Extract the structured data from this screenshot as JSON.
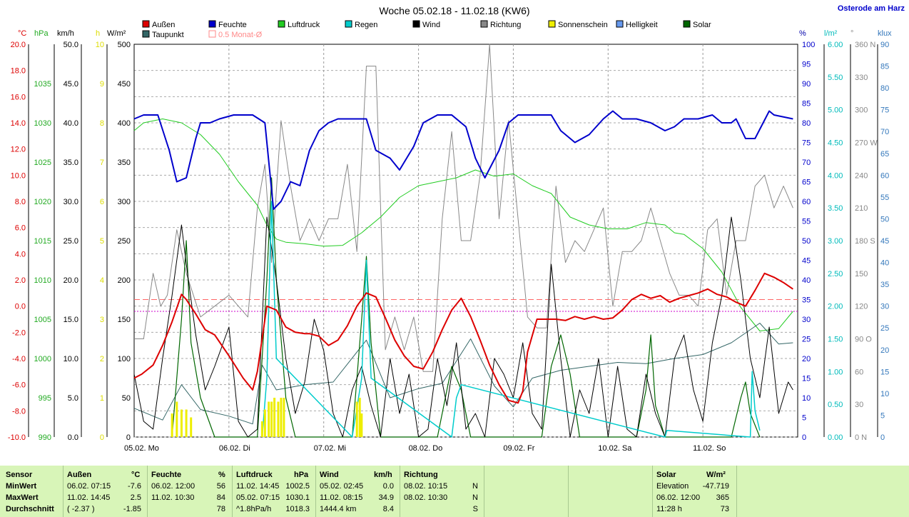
{
  "title": "Woche 05.02.18 - 11.02.18 (KW6)",
  "location": "Osterode am Harz",
  "legend": [
    {
      "name": "Außen",
      "color": "#dd0000"
    },
    {
      "name": "Taupunkt",
      "color": "#336666"
    },
    {
      "name": "Feuchte",
      "color": "#0000cc"
    },
    {
      "name": "0.5 Monat-Ø",
      "color": "#ff8888"
    },
    {
      "name": "Luftdruck",
      "color": "#22cc22"
    },
    {
      "name": "Regen",
      "color": "#00cccc"
    },
    {
      "name": "Wind",
      "color": "#000000"
    },
    {
      "name": "Richtung",
      "color": "#888888"
    },
    {
      "name": "Sonnenschein",
      "color": "#eeee00"
    },
    {
      "name": "Helligkeit",
      "color": "#6699ee"
    },
    {
      "name": "Solar",
      "color": "#006600"
    }
  ],
  "axis_units": {
    "temp": "°C",
    "pressure": "hPa",
    "wind": "km/h",
    "sun": "h",
    "solar": "W/m²",
    "humidity": "%",
    "rain": "l/m²",
    "direction": "°",
    "brightness": "klux"
  },
  "chart_data": {
    "type": "line",
    "x_labels": [
      "05.02. Mo",
      "06.02. Di",
      "07.02. Mi",
      "08.02. Do",
      "09.02. Fr",
      "10.02. Sa",
      "11.02. So"
    ],
    "axes": {
      "temp": {
        "range": [
          -10,
          20
        ],
        "ticks": [
          "20.0",
          "18.0",
          "16.0",
          "14.0",
          "12.0",
          "10.0",
          "8.0",
          "6.0",
          "4.0",
          "2.0",
          "0.0",
          "-2.0",
          "-4.0",
          "-6.0",
          "-8.0",
          "-10.0"
        ]
      },
      "pressure": {
        "range": [
          990,
          1040
        ],
        "ticks": [
          "1035",
          "1030",
          "1025",
          "1020",
          "1015",
          "1010",
          "1005",
          "1000",
          "995",
          "990"
        ]
      },
      "wind": {
        "range": [
          0,
          50
        ],
        "ticks": [
          "50.0",
          "45.0",
          "40.0",
          "35.0",
          "30.0",
          "25.0",
          "20.0",
          "15.0",
          "10.0",
          "5.0",
          "0.0"
        ]
      },
      "sun": {
        "range": [
          0,
          10
        ],
        "ticks": [
          "10",
          "9",
          "8",
          "7",
          "6",
          "5",
          "4",
          "3",
          "2",
          "1",
          "0"
        ]
      },
      "solar": {
        "range": [
          0,
          500
        ],
        "ticks": [
          "500",
          "450",
          "400",
          "350",
          "300",
          "250",
          "200",
          "150",
          "100",
          "50",
          "0"
        ]
      },
      "humidity": {
        "range": [
          0,
          100
        ],
        "ticks": [
          "100",
          "95",
          "90",
          "85",
          "80",
          "75",
          "70",
          "65",
          "60",
          "55",
          "50",
          "45",
          "40",
          "35",
          "30",
          "25",
          "20",
          "15",
          "10",
          "5",
          "0"
        ]
      },
      "rain": {
        "range": [
          0,
          6
        ],
        "ticks": [
          "6.00",
          "5.50",
          "5.00",
          "4.50",
          "4.00",
          "3.50",
          "3.00",
          "2.50",
          "2.00",
          "1.50",
          "1.00",
          "0.50",
          "0.00"
        ]
      },
      "direction": {
        "range": [
          0,
          360
        ],
        "ticks": [
          "360 N",
          "330",
          "300",
          "270 W",
          "240",
          "210",
          "180 S",
          "150",
          "120",
          "90 O",
          "60",
          "30",
          "0 N"
        ]
      },
      "brightness": {
        "range": [
          0,
          90
        ],
        "ticks": [
          "90",
          "85",
          "80",
          "75",
          "70",
          "65",
          "60",
          "55",
          "50",
          "45",
          "40",
          "35",
          "30",
          "25",
          "20",
          "15",
          "10",
          "5",
          "0"
        ]
      }
    },
    "reference_lines": {
      "temp_avg_half_month": 0.5,
      "temp_zero": -0.4
    },
    "series": [
      {
        "name": "Außen",
        "axis": "temp",
        "x": [
          0,
          0.08,
          0.2,
          0.3,
          0.4,
          0.5,
          0.55,
          0.65,
          0.75,
          0.85,
          1,
          1.15,
          1.25,
          1.3,
          1.4,
          1.5,
          1.6,
          1.7,
          1.8,
          1.85,
          1.95,
          2.05,
          2.15,
          2.25,
          2.35,
          2.45,
          2.55,
          2.65,
          2.75,
          2.85,
          2.95,
          3.05,
          3.15,
          3.25,
          3.35,
          3.45,
          3.55,
          3.65,
          3.75,
          3.85,
          3.95,
          4.05,
          4.1,
          4.15,
          4.25,
          4.35,
          4.45,
          4.55,
          4.65,
          4.75,
          4.85,
          4.95,
          5.05,
          5.15,
          5.25,
          5.35,
          5.45,
          5.55,
          5.65,
          5.75,
          5.85,
          5.95,
          6.05,
          6.15,
          6.25,
          6.35,
          6.45,
          6.55,
          6.65,
          6.75,
          6.85,
          6.95
        ],
        "y": [
          -5.5,
          -5.2,
          -4.5,
          -3,
          -1.2,
          0.9,
          0.5,
          -0.6,
          -1.8,
          -2.2,
          -3.8,
          -5.5,
          -6.4,
          -5,
          0,
          -0.3,
          -1.6,
          -2,
          -2.1,
          -2.1,
          -2.3,
          -3,
          -2.6,
          -1.5,
          0,
          1,
          0.7,
          -0.9,
          -2.6,
          -3.8,
          -4.6,
          -4.8,
          -3.5,
          -1.8,
          -0.3,
          0.6,
          -0.8,
          -2.6,
          -4.5,
          -6,
          -7.2,
          -7.4,
          -6.5,
          -3.5,
          -1,
          -1,
          -1,
          -1.1,
          -0.8,
          -1,
          -0.8,
          -1,
          -0.9,
          -0.3,
          0.5,
          0.9,
          0.6,
          0.8,
          0.3,
          0.6,
          0.8,
          1,
          1.3,
          0.9,
          0.7,
          0.3,
          0,
          1.2,
          2.5,
          2.2,
          1.8,
          1.3
        ]
      },
      {
        "name": "Taupunkt",
        "axis": "temp",
        "x": [
          0,
          0.3,
          0.5,
          0.7,
          1,
          1.25,
          1.35,
          1.5,
          1.8,
          2.1,
          2.45,
          2.7,
          3,
          3.25,
          3.55,
          3.8,
          4,
          4.2,
          4.5,
          4.8,
          5.1,
          5.4,
          5.7,
          6,
          6.3,
          6.6,
          6.8,
          6.95
        ],
        "y": [
          -7.8,
          -8.7,
          -6,
          -7.9,
          -8.4,
          -9,
          -4.5,
          -6.4,
          -6,
          -5.8,
          -2.6,
          -7,
          -6.3,
          -5.9,
          -2.5,
          -6.1,
          -7.7,
          -5.5,
          -4.9,
          -4.6,
          -4.3,
          -4.4,
          -4,
          -3.7,
          -2.8,
          -1.3,
          -2.9,
          -2.8
        ]
      },
      {
        "name": "Feuchte",
        "axis": "humidity",
        "x": [
          0,
          0.1,
          0.25,
          0.37,
          0.45,
          0.55,
          0.65,
          0.7,
          0.8,
          0.9,
          1.05,
          1.25,
          1.38,
          1.47,
          1.55,
          1.65,
          1.75,
          1.85,
          1.95,
          2.05,
          2.15,
          2.3,
          2.45,
          2.55,
          2.7,
          2.8,
          2.95,
          3.05,
          3.2,
          3.35,
          3.5,
          3.6,
          3.7,
          3.85,
          3.95,
          4.05,
          4.2,
          4.4,
          4.5,
          4.65,
          4.8,
          4.95,
          5.05,
          5.15,
          5.3,
          5.45,
          5.6,
          5.7,
          5.8,
          5.95,
          6.1,
          6.2,
          6.3,
          6.35,
          6.45,
          6.55,
          6.7,
          6.75,
          6.95
        ],
        "y": [
          81,
          82,
          82,
          73,
          65,
          66,
          76,
          80,
          80,
          81,
          82,
          82,
          80,
          58,
          60,
          65,
          64,
          73,
          78,
          80,
          81,
          81,
          81,
          73,
          71,
          68,
          74,
          80,
          82,
          82,
          79,
          71,
          66,
          73,
          80,
          82,
          82,
          82,
          78,
          75,
          77,
          81,
          83,
          81,
          81,
          80,
          78,
          79,
          81,
          81,
          82,
          80,
          80,
          81,
          76,
          76,
          83,
          82,
          81
        ]
      },
      {
        "name": "Luftdruck",
        "axis": "pressure",
        "x": [
          0,
          0.1,
          0.3,
          0.5,
          0.7,
          0.9,
          1.1,
          1.3,
          1.4,
          1.5,
          1.6,
          1.8,
          2,
          2.2,
          2.4,
          2.6,
          2.8,
          3,
          3.2,
          3.4,
          3.6,
          3.8,
          4,
          4.2,
          4.4,
          4.6,
          4.8,
          5,
          5.2,
          5.4,
          5.6,
          5.7,
          5.8,
          6,
          6.2,
          6.4,
          6.6,
          6.8,
          6.95
        ],
        "y": [
          1029,
          1030,
          1030.5,
          1030,
          1028.5,
          1026,
          1022.5,
          1019.5,
          1017,
          1015.2,
          1014.8,
          1014.6,
          1014.3,
          1014.4,
          1016,
          1018,
          1020.5,
          1022,
          1022.5,
          1023,
          1024,
          1023.2,
          1023.5,
          1022,
          1021,
          1018,
          1017,
          1016.5,
          1016.5,
          1017.3,
          1017,
          1016,
          1015.8,
          1014,
          1011,
          1006.5,
          1003.5,
          1003.8,
          1006
        ]
      },
      {
        "name": "Wind",
        "axis": "wind",
        "x": [
          0,
          0.1,
          0.2,
          0.3,
          0.4,
          0.5,
          0.55,
          0.65,
          0.75,
          0.85,
          1,
          1.1,
          1.2,
          1.3,
          1.4,
          1.5,
          1.6,
          1.7,
          1.8,
          1.9,
          2,
          2.1,
          2.2,
          2.3,
          2.4,
          2.5,
          2.6,
          2.7,
          2.8,
          2.9,
          3,
          3.1,
          3.2,
          3.3,
          3.4,
          3.5,
          3.6,
          3.7,
          3.8,
          3.9,
          4,
          4.1,
          4.2,
          4.3,
          4.4,
          4.5,
          4.6,
          4.7,
          4.8,
          4.9,
          5,
          5.1,
          5.2,
          5.3,
          5.4,
          5.5,
          5.6,
          5.7,
          5.8,
          5.9,
          6,
          6.1,
          6.2,
          6.3,
          6.4,
          6.5,
          6.6,
          6.7,
          6.8,
          6.9,
          6.95
        ],
        "y": [
          8,
          2,
          1,
          10,
          18,
          27,
          22,
          13,
          6,
          9,
          14,
          2,
          0,
          1,
          28,
          20,
          10,
          3,
          7,
          15,
          11,
          3,
          0,
          6,
          9,
          4,
          0,
          10,
          3,
          8,
          0,
          1,
          10,
          4,
          12,
          1,
          3,
          0,
          10,
          8,
          5,
          12,
          3,
          1,
          22,
          10,
          0,
          6,
          3,
          10,
          0,
          9,
          1,
          0,
          8,
          3,
          0,
          10,
          13,
          6,
          2,
          12,
          18,
          28,
          20,
          10,
          5,
          14,
          3,
          7,
          6
        ]
      },
      {
        "name": "Richtung",
        "axis": "direction",
        "x": [
          0,
          0.1,
          0.2,
          0.28,
          0.35,
          0.45,
          0.55,
          0.7,
          0.85,
          1,
          1.1,
          1.2,
          1.3,
          1.38,
          1.45,
          1.55,
          1.65,
          1.75,
          1.85,
          1.95,
          2.05,
          2.15,
          2.25,
          2.35,
          2.45,
          2.55,
          2.65,
          2.75,
          2.85,
          2.95,
          3.05,
          3.15,
          3.25,
          3.35,
          3.45,
          3.55,
          3.65,
          3.75,
          3.85,
          3.95,
          4.05,
          4.15,
          4.25,
          4.35,
          4.45,
          4.55,
          4.65,
          4.75,
          4.85,
          4.95,
          5.05,
          5.15,
          5.25,
          5.35,
          5.45,
          5.55,
          5.65,
          5.75,
          5.85,
          5.95,
          6.05,
          6.15,
          6.25,
          6.35,
          6.45,
          6.55,
          6.65,
          6.75,
          6.85,
          6.95
        ],
        "y": [
          90,
          90,
          150,
          120,
          130,
          190,
          150,
          110,
          120,
          130,
          120,
          110,
          210,
          250,
          160,
          290,
          230,
          180,
          200,
          180,
          200,
          200,
          250,
          170,
          340,
          340,
          80,
          110,
          80,
          110,
          60,
          60,
          200,
          280,
          180,
          180,
          240,
          360,
          200,
          290,
          200,
          110,
          100,
          100,
          230,
          160,
          180,
          170,
          190,
          210,
          120,
          170,
          170,
          180,
          210,
          180,
          150,
          130,
          130,
          120,
          190,
          200,
          130,
          180,
          180,
          230,
          240,
          210,
          230,
          210
        ]
      },
      {
        "name": "Solar",
        "axis": "solar",
        "x": [
          0.4,
          0.5,
          0.55,
          0.6,
          0.7,
          0.85,
          1.3,
          1.4,
          1.45,
          1.5,
          1.6,
          1.7,
          2.3,
          2.4,
          2.45,
          2.5,
          2.6,
          3.2,
          3.3,
          3.35,
          3.45,
          3.55,
          4.3,
          4.4,
          4.5,
          4.6,
          4.7,
          5.3,
          5.4,
          5.45,
          5.5,
          5.6,
          6.3,
          6.4,
          6.45,
          6.5,
          6.6
        ],
        "y": [
          0,
          150,
          250,
          120,
          50,
          0,
          0,
          200,
          330,
          200,
          50,
          0,
          0,
          150,
          230,
          120,
          0,
          0,
          60,
          90,
          60,
          0,
          0,
          90,
          130,
          80,
          0,
          0,
          60,
          130,
          40,
          0,
          0,
          50,
          70,
          30,
          0
        ]
      },
      {
        "name": "Regen",
        "axis": "rain",
        "x": [
          1.35,
          1.4,
          1.45,
          1.5,
          2.3,
          2.4,
          2.45,
          2.5,
          3.35,
          3.4,
          3.45,
          5.6,
          5.62,
          6.5,
          6.52,
          6.55,
          6.6
        ],
        "y": [
          0,
          0.9,
          3.6,
          1.2,
          0,
          0.9,
          2.7,
          0.9,
          0,
          0.6,
          0.8,
          0,
          0.1,
          0,
          1,
          0.4,
          0.1
        ]
      },
      {
        "name": "Sonnenschein",
        "axis": "sun",
        "x": [
          0.4,
          0.45,
          0.5,
          0.55,
          0.6,
          1.35,
          1.38,
          1.42,
          1.45,
          1.48,
          1.52,
          1.55,
          1.58,
          2.35,
          2.38,
          2.4
        ],
        "y": [
          0.6,
          0.9,
          0.7,
          0.7,
          0.5,
          0.4,
          0.7,
          0.9,
          0.9,
          1,
          0.9,
          1,
          1,
          0.9,
          1,
          0.6
        ]
      }
    ]
  },
  "summary": {
    "headers": {
      "sensor": "Sensor",
      "aussen": "Außen",
      "aussen_unit": "°C",
      "feuchte": "Feuchte",
      "feuchte_unit": "%",
      "luftdruck": "Luftdruck",
      "luftdruck_unit": "hPa",
      "wind": "Wind",
      "wind_unit": "km/h",
      "richtung": "Richtung",
      "solar": "Solar",
      "solar_unit": "W/m²"
    },
    "rows": [
      {
        "label": "MinWert",
        "aussen_t": "06.02.  07:15",
        "aussen_v": "-7.6",
        "feuchte_t": "06.02.  12:00",
        "feuchte_v": "56",
        "luftdruck_t": "11.02.  14:45",
        "luftdruck_v": "1002.5",
        "wind_t": "05.02.  02:45",
        "wind_v": "0.0",
        "richtung_t": "08.02.  10:15",
        "richtung_v": "N",
        "solar_t": "Elevation",
        "solar_v": "-47.719"
      },
      {
        "label": "MaxWert",
        "aussen_t": "11.02.  14:45",
        "aussen_v": "2.5",
        "feuchte_t": "11.02.  10:30",
        "feuchte_v": "84",
        "luftdruck_t": "05.02.  07:15",
        "luftdruck_v": "1030.1",
        "wind_t": "11.02.  08:15",
        "wind_v": "34.9",
        "richtung_t": "08.02.  10:30",
        "richtung_v": "N",
        "solar_t": "06.02.  12:00",
        "solar_v": "365"
      },
      {
        "label": "Durchschnitt",
        "aussen_t": "( -2.37 )",
        "aussen_v": "-1.85",
        "feuchte_t": "",
        "feuchte_v": "78",
        "luftdruck_t": "^1.8hPa/h",
        "luftdruck_v": "1018.3",
        "wind_t": "1444.4 km",
        "wind_v": "8.4",
        "richtung_t": "",
        "richtung_v": "S",
        "solar_t": "11:28 h",
        "solar_v": "73"
      }
    ]
  }
}
